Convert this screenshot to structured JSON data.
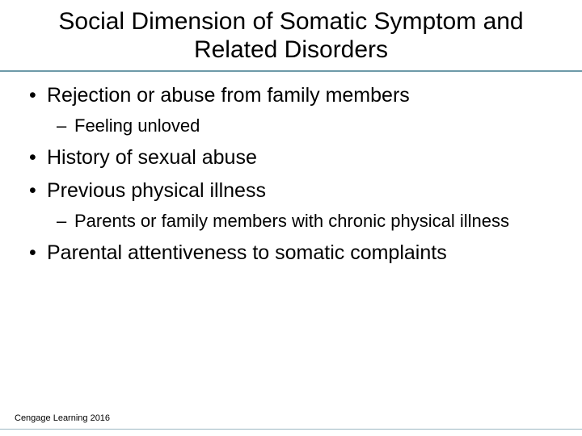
{
  "slide": {
    "title": "Social Dimension of Somatic Symptom and Related Disorders",
    "bullets": [
      {
        "text": "Rejection or abuse from family members",
        "sub": [
          {
            "text": "Feeling unloved"
          }
        ]
      },
      {
        "text": "History of sexual abuse",
        "sub": []
      },
      {
        "text": "Previous physical illness",
        "sub": [
          {
            "text": "Parents or family members with chronic physical illness"
          }
        ]
      },
      {
        "text": "Parental attentiveness to somatic complaints",
        "sub": []
      }
    ],
    "footer": "Cengage Learning 2016"
  },
  "style": {
    "background_color": "#ffffff",
    "text_color": "#000000",
    "rule_color": "#6d9aa8",
    "footer_rule_color": "#9cb8c2",
    "title_fontsize": 30,
    "level1_fontsize": 25,
    "level2_fontsize": 22,
    "footer_fontsize": 11,
    "font_family": "Arial"
  }
}
